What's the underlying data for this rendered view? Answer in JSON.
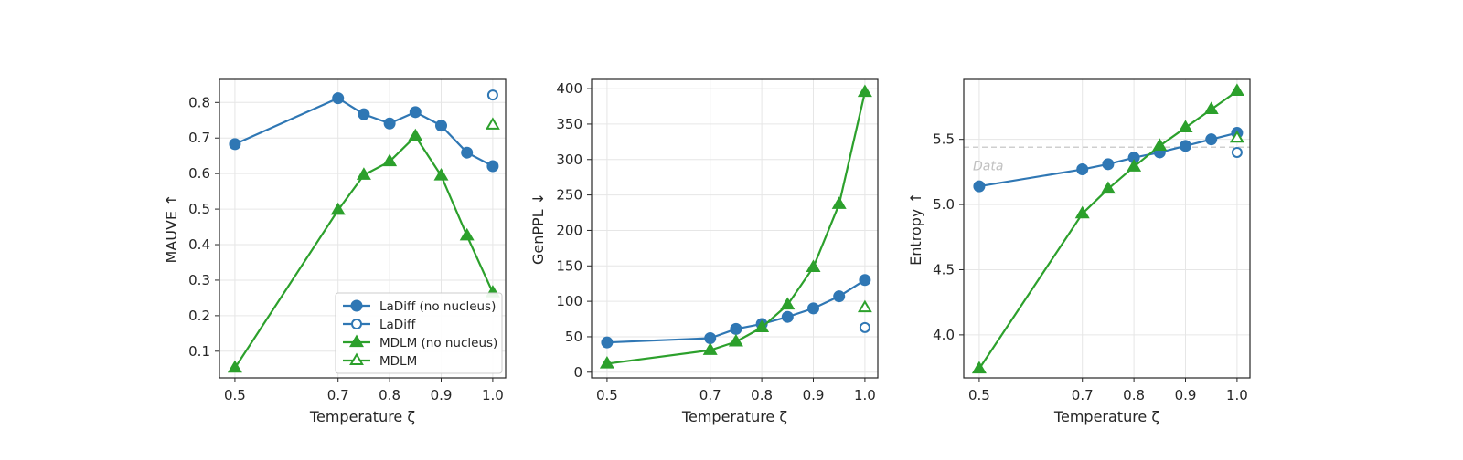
{
  "colors": {
    "ladiff": "#2f77b4",
    "mdlm": "#2ca02c",
    "reference": "#cfcfcf",
    "grid": "#e6e6e6"
  },
  "chart_data": [
    {
      "type": "line",
      "xlabel": "Temperature ζ",
      "ylabel": "MAUVE ↑",
      "xlim": [
        0.47,
        1.025
      ],
      "ylim": [
        0.025,
        0.865
      ],
      "xticks": [
        0.5,
        0.7,
        0.8,
        0.9,
        1.0
      ],
      "xtick_labels": [
        "0.5",
        "0.7",
        "0.8",
        "0.9",
        "1.0"
      ],
      "yticks": [
        0.1,
        0.2,
        0.3,
        0.4,
        0.5,
        0.6,
        0.7,
        0.8
      ],
      "ytick_labels": [
        "0.1",
        "0.2",
        "0.3",
        "0.4",
        "0.5",
        "0.6",
        "0.7",
        "0.8"
      ],
      "grid": true,
      "legend_position": "lower-right",
      "series": [
        {
          "name": "LaDiff (no nucleus)",
          "color": "ladiff",
          "marker": "circle",
          "filled": true,
          "line": true,
          "x": [
            0.5,
            0.7,
            0.75,
            0.8,
            0.85,
            0.9,
            0.95,
            1.0
          ],
          "y": [
            0.683,
            0.812,
            0.767,
            0.741,
            0.773,
            0.735,
            0.659,
            0.621
          ]
        },
        {
          "name": "LaDiff",
          "color": "ladiff",
          "marker": "circle",
          "filled": false,
          "line": false,
          "x": [
            1.0
          ],
          "y": [
            0.821
          ]
        },
        {
          "name": "MDLM (no nucleus)",
          "color": "mdlm",
          "marker": "triangle",
          "filled": true,
          "line": true,
          "x": [
            0.5,
            0.7,
            0.75,
            0.8,
            0.85,
            0.9,
            0.95,
            1.0
          ],
          "y": [
            0.053,
            0.497,
            0.596,
            0.634,
            0.705,
            0.594,
            0.425,
            0.265
          ]
        },
        {
          "name": "MDLM",
          "color": "mdlm",
          "marker": "triangle",
          "filled": false,
          "line": false,
          "x": [
            1.0
          ],
          "y": [
            0.737
          ]
        }
      ]
    },
    {
      "type": "line",
      "xlabel": "Temperature ζ",
      "ylabel": "GenPPL ↓",
      "xlim": [
        0.47,
        1.025
      ],
      "ylim": [
        -8,
        413
      ],
      "xticks": [
        0.5,
        0.7,
        0.8,
        0.9,
        1.0
      ],
      "xtick_labels": [
        "0.5",
        "0.7",
        "0.8",
        "0.9",
        "1.0"
      ],
      "yticks": [
        0,
        50,
        100,
        150,
        200,
        250,
        300,
        350,
        400
      ],
      "ytick_labels": [
        "0",
        "50",
        "100",
        "150",
        "200",
        "250",
        "300",
        "350",
        "400"
      ],
      "grid": true,
      "series": [
        {
          "name": "LaDiff (no nucleus)",
          "color": "ladiff",
          "marker": "circle",
          "filled": true,
          "line": true,
          "x": [
            0.5,
            0.7,
            0.75,
            0.8,
            0.85,
            0.9,
            0.95,
            1.0
          ],
          "y": [
            42,
            48,
            61,
            68,
            78,
            90,
            107,
            130
          ]
        },
        {
          "name": "LaDiff",
          "color": "ladiff",
          "marker": "circle",
          "filled": false,
          "line": false,
          "x": [
            1.0
          ],
          "y": [
            63
          ]
        },
        {
          "name": "MDLM (no nucleus)",
          "color": "mdlm",
          "marker": "triangle",
          "filled": true,
          "line": true,
          "x": [
            0.5,
            0.7,
            0.75,
            0.8,
            0.85,
            0.9,
            0.95,
            1.0
          ],
          "y": [
            12,
            31,
            43,
            63,
            95,
            148,
            237,
            395
          ]
        },
        {
          "name": "MDLM",
          "color": "mdlm",
          "marker": "triangle",
          "filled": false,
          "line": false,
          "x": [
            1.0
          ],
          "y": [
            91
          ]
        }
      ]
    },
    {
      "type": "line",
      "xlabel": "Temperature ζ",
      "ylabel": "Entropy ↑",
      "xlim": [
        0.47,
        1.025
      ],
      "ylim": [
        3.67,
        5.96
      ],
      "xticks": [
        0.5,
        0.7,
        0.8,
        0.9,
        1.0
      ],
      "xtick_labels": [
        "0.5",
        "0.7",
        "0.8",
        "0.9",
        "1.0"
      ],
      "yticks": [
        4.0,
        4.5,
        5.0,
        5.5
      ],
      "ytick_labels": [
        "4.0",
        "4.5",
        "5.0",
        "5.5"
      ],
      "grid": true,
      "reference_line": {
        "y": 5.44,
        "label": "Data"
      },
      "series": [
        {
          "name": "LaDiff (no nucleus)",
          "color": "ladiff",
          "marker": "circle",
          "filled": true,
          "line": true,
          "x": [
            0.5,
            0.7,
            0.75,
            0.8,
            0.85,
            0.9,
            0.95,
            1.0
          ],
          "y": [
            5.14,
            5.27,
            5.31,
            5.36,
            5.4,
            5.45,
            5.5,
            5.55
          ]
        },
        {
          "name": "LaDiff",
          "color": "ladiff",
          "marker": "circle",
          "filled": false,
          "line": false,
          "x": [
            1.0
          ],
          "y": [
            5.4
          ]
        },
        {
          "name": "MDLM (no nucleus)",
          "color": "mdlm",
          "marker": "triangle",
          "filled": true,
          "line": true,
          "x": [
            0.5,
            0.7,
            0.75,
            0.8,
            0.85,
            0.9,
            0.95,
            1.0
          ],
          "y": [
            3.74,
            4.93,
            5.12,
            5.29,
            5.45,
            5.59,
            5.73,
            5.87
          ]
        },
        {
          "name": "MDLM",
          "color": "mdlm",
          "marker": "triangle",
          "filled": false,
          "line": false,
          "x": [
            1.0
          ],
          "y": [
            5.51
          ]
        }
      ]
    }
  ]
}
